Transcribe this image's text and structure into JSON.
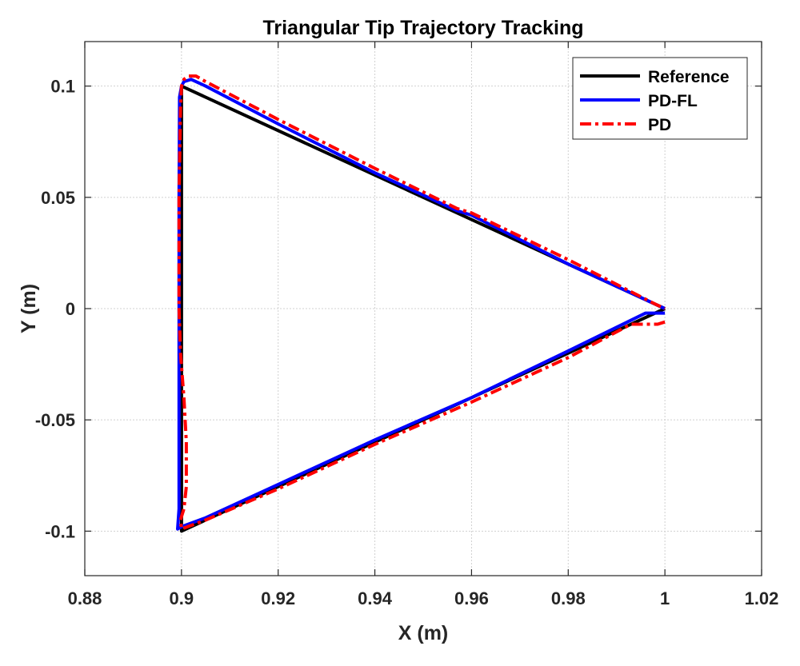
{
  "chart_data": {
    "type": "line",
    "title": "Triangular Tip Trajectory Tracking",
    "xlabel": "X (m)",
    "ylabel": "Y (m)",
    "xlim": [
      0.88,
      1.02
    ],
    "ylim": [
      -0.12,
      0.12
    ],
    "xticks": [
      0.88,
      0.9,
      0.92,
      0.94,
      0.96,
      0.98,
      1.0,
      1.02
    ],
    "xtick_labels": [
      "0.88",
      "0.9",
      "0.92",
      "0.94",
      "0.96",
      "0.98",
      "1",
      "1.02"
    ],
    "yticks": [
      -0.1,
      -0.05,
      0,
      0.05,
      0.1
    ],
    "ytick_labels": [
      "-0.1",
      "-0.05",
      "0",
      "0.05",
      "0.1"
    ],
    "grid": true,
    "legend_position": "top-right",
    "series": [
      {
        "name": "Reference",
        "color": "#000000",
        "style": "solid",
        "x": [
          1.0,
          0.95,
          0.9,
          0.9,
          0.9,
          0.95,
          1.0
        ],
        "y": [
          0.0,
          -0.05,
          -0.1,
          0.0,
          0.1,
          0.05,
          0.0
        ]
      },
      {
        "name": "PD-FL",
        "color": "#0000ff",
        "style": "solid",
        "x": [
          1.0,
          0.996,
          0.98,
          0.96,
          0.94,
          0.92,
          0.905,
          0.9,
          0.8992,
          0.8995,
          0.8995,
          0.8995,
          0.8995,
          0.8996,
          0.9,
          0.9005,
          0.902,
          0.905,
          0.92,
          0.94,
          0.957,
          0.96,
          0.98,
          1.0
        ],
        "y": [
          -0.002,
          -0.002,
          -0.019,
          -0.04,
          -0.059,
          -0.079,
          -0.094,
          -0.098,
          -0.099,
          -0.09,
          -0.05,
          0.0,
          0.05,
          0.095,
          0.1,
          0.102,
          0.103,
          0.1,
          0.083,
          0.061,
          0.044,
          0.042,
          0.02,
          0.0
        ]
      },
      {
        "name": "PD",
        "color": "#ff0000",
        "style": "dashdot",
        "x": [
          1.0,
          0.9985,
          0.993,
          0.98,
          0.96,
          0.94,
          0.92,
          0.905,
          0.9,
          0.8998,
          0.9005,
          0.901,
          0.901,
          0.9005,
          0.8998,
          0.8995,
          0.8995,
          0.8998,
          0.9,
          0.9005,
          0.9015,
          0.903,
          0.905,
          0.92,
          0.94,
          0.957,
          0.96,
          0.98,
          0.998,
          1.0
        ],
        "y": [
          -0.006,
          -0.007,
          -0.007,
          -0.022,
          -0.042,
          -0.061,
          -0.081,
          -0.095,
          -0.099,
          -0.095,
          -0.09,
          -0.08,
          -0.06,
          -0.04,
          -0.02,
          0.0,
          0.05,
          0.09,
          0.1,
          0.103,
          0.1045,
          0.1045,
          0.102,
          0.085,
          0.063,
          0.045,
          0.043,
          0.022,
          0.002,
          0.0
        ]
      }
    ]
  }
}
